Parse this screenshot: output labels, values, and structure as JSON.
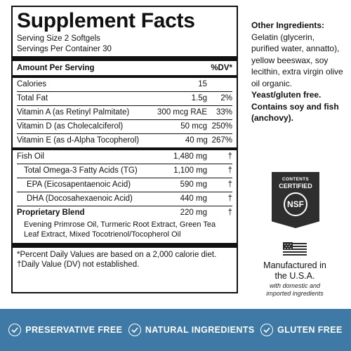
{
  "facts": {
    "title": "Supplement Facts",
    "serving_size": "Serving Size 2 Softgels",
    "servings_per_container": "Servings Per Container 30",
    "header_amount": "Amount Per Serving",
    "header_dv": "%DV*",
    "calories": {
      "name": "Calories",
      "amount": "15",
      "dv": ""
    },
    "total_fat": {
      "name": "Total Fat",
      "amount": "1.5g",
      "dv": "2%"
    },
    "vitamins": [
      {
        "name": "Vitamin A (as Retinyl Palmitate)",
        "amount": "300 mcg RAE",
        "dv": "33%"
      },
      {
        "name": "Vitamin D (as Cholecalciferol)",
        "amount": "50 mcg",
        "dv": "250%"
      },
      {
        "name": "Vitamin E (as d-Alpha Tocopherol)",
        "amount": "40 mg",
        "dv": "267%"
      }
    ],
    "fish_oil": {
      "name": "Fish Oil",
      "amount": "1,480 mg",
      "dv": "†"
    },
    "fish_oil_sub": [
      {
        "name": "Total Omega-3 Fatty Acids (TG)",
        "amount": "1,100 mg",
        "dv": "†"
      },
      {
        "name": "EPA (Eicosapentaenoic Acid)",
        "amount": "590 mg",
        "dv": "†"
      },
      {
        "name": "DHA (Docosahexaenoic Acid)",
        "amount": "440 mg",
        "dv": "†"
      }
    ],
    "blend": {
      "name": "Proprietary Blend",
      "amount": "220 mg",
      "dv": "†",
      "desc": "Evening Primrose Oil, Turmeric Root Extract, Green Tea Leaf Extract, Mixed Tocotrienol/Tocopherol Oil"
    },
    "footnote_1": "*Percent Daily Values are based on a 2,000 calorie diet.",
    "footnote_2": "†Daily Value (DV) not established."
  },
  "other_ingredients": {
    "title": "Other Ingredients:",
    "text": "Gelatin (glycerin, purified water, annatto), yellow beeswax, soy lecithin, extra virgin olive oil organic.",
    "bold_text": "Yeast/gluten free. Contains soy and fish (anchovy)."
  },
  "nsf": {
    "line1": "CONTENTS",
    "line2": "CERTIFIED",
    "seal": "NSF"
  },
  "made_in": {
    "line1": "Manufactured in the U.S.A.",
    "line2": "with domestic and imported ingredients"
  },
  "badges": [
    {
      "label": "PRESERVATIVE FREE",
      "icon": "check-icon"
    },
    {
      "label": "NATURAL INGREDIENTS",
      "icon": "check-icon"
    },
    {
      "label": "GLUTEN FREE",
      "icon": "check-icon"
    }
  ],
  "colors": {
    "band": "#3f7aa6",
    "text": "#111111",
    "badge": "#2e2e2e"
  }
}
